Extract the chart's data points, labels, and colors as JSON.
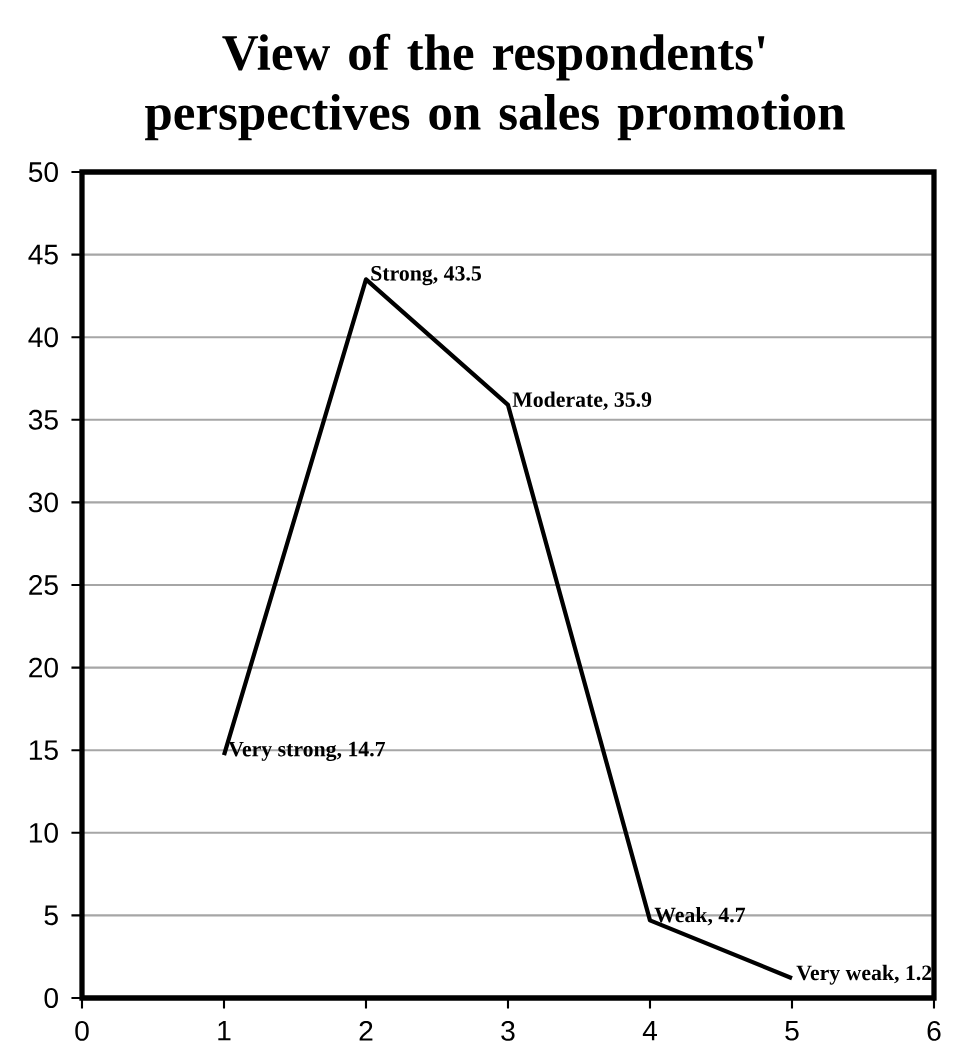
{
  "chart_data": {
    "type": "line",
    "title": "View of the respondents' perspectives on sales promotion",
    "x": [
      1,
      2,
      3,
      4,
      5
    ],
    "values": [
      14.7,
      43.5,
      35.9,
      4.7,
      1.2
    ],
    "color": "#000000",
    "xlim": [
      0,
      6
    ],
    "xticks": [
      0,
      1,
      2,
      3,
      4,
      5,
      6
    ],
    "ylim": [
      0,
      50
    ],
    "yticks": [
      0,
      5,
      10,
      15,
      20,
      25,
      30,
      35,
      40,
      45,
      50
    ],
    "grid": "y",
    "annotations": [
      {
        "text": "Very strong, 14.7",
        "x": 1,
        "y": 14.7
      },
      {
        "text": "Strong, 43.5",
        "x": 2,
        "y": 43.5
      },
      {
        "text": "Moderate, 35.9",
        "x": 3,
        "y": 35.9
      },
      {
        "text": "Weak, 4.7",
        "x": 4,
        "y": 4.7
      },
      {
        "text": "Very weak, 1.2",
        "x": 5,
        "y": 1.2
      }
    ]
  }
}
